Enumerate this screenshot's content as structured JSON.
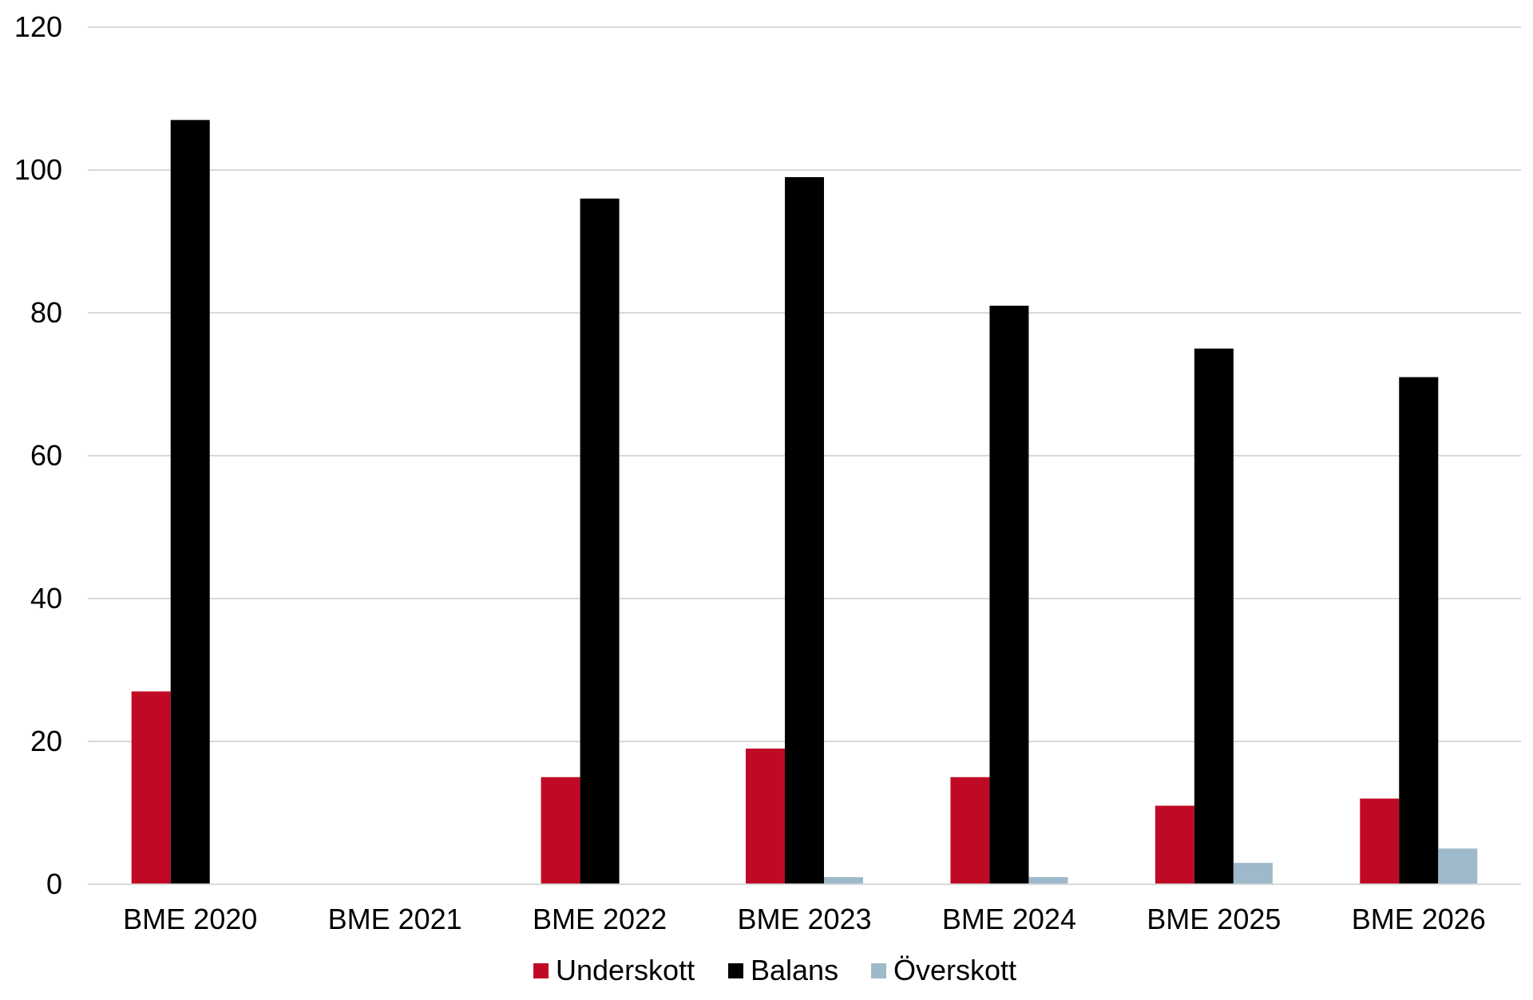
{
  "chart_data": {
    "type": "bar",
    "title": "",
    "xlabel": "",
    "ylabel": "",
    "categories": [
      "BME 2020",
      "BME 2021",
      "BME 2022",
      "BME 2023",
      "BME 2024",
      "BME 2025",
      "BME 2026"
    ],
    "series": [
      {
        "name": "Underskott",
        "color": "#C00A25",
        "values": [
          27,
          0,
          15,
          19,
          15,
          11,
          12
        ]
      },
      {
        "name": "Balans",
        "color": "#000000",
        "values": [
          107,
          0,
          96,
          99,
          81,
          75,
          71
        ]
      },
      {
        "name": "Överskott",
        "color": "#9DB9CA",
        "values": [
          0,
          0,
          0,
          1,
          1,
          3,
          5
        ]
      }
    ],
    "ylim": [
      0,
      120
    ],
    "yticks": [
      0,
      20,
      40,
      60,
      80,
      100,
      120
    ],
    "grid": true,
    "legend_position": "bottom-center"
  }
}
